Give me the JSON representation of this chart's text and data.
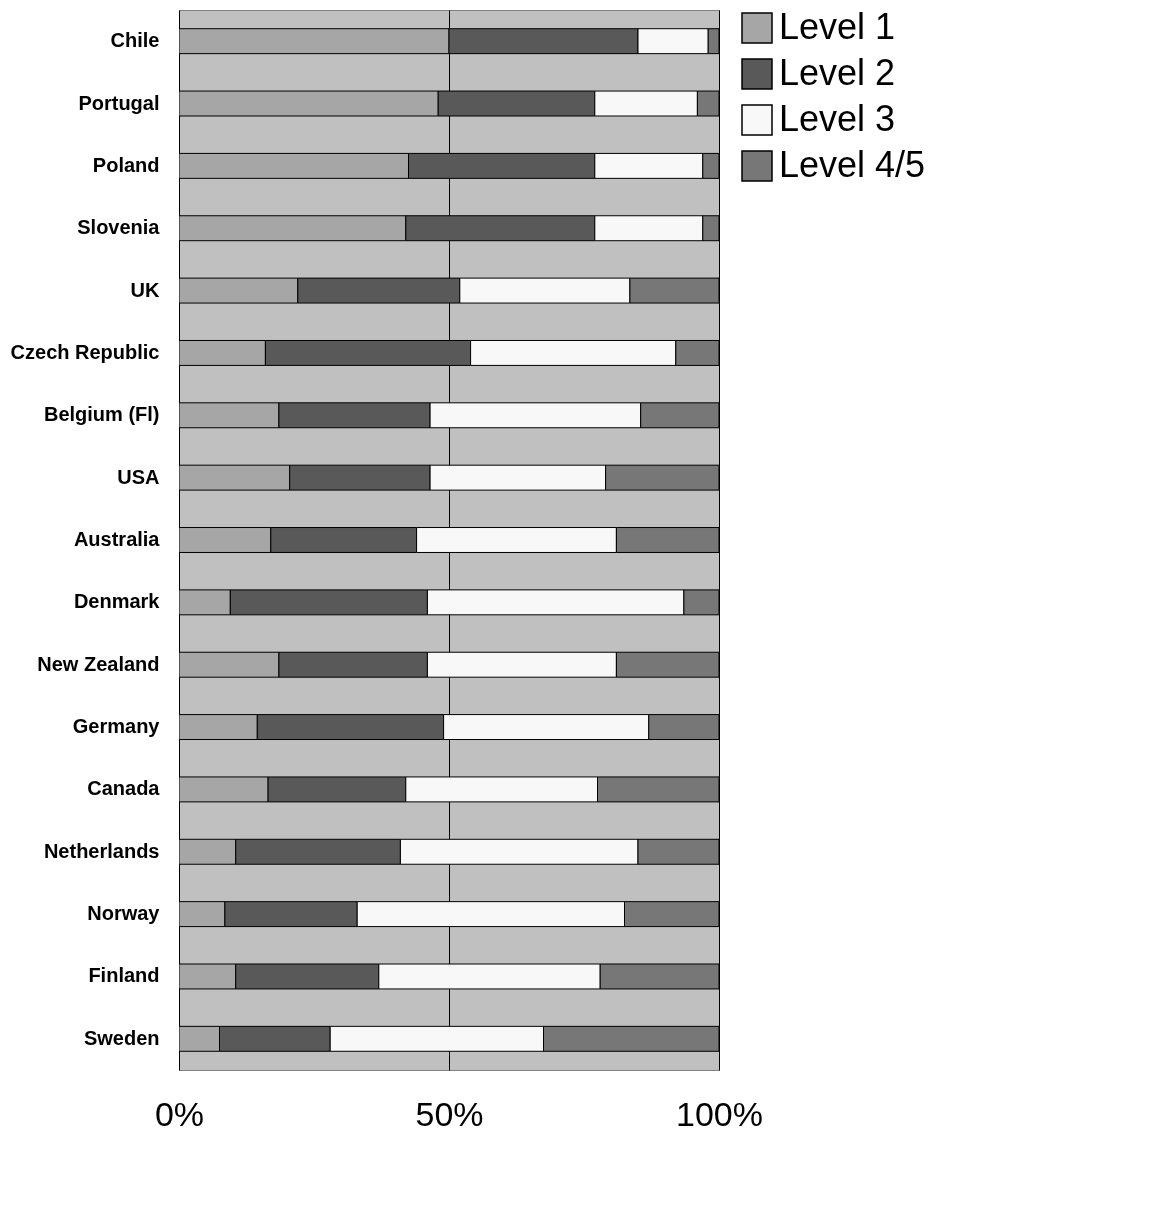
{
  "chart_data": {
    "type": "bar",
    "orientation": "horizontal",
    "stacked": true,
    "categories": [
      "Chile",
      "Portugal",
      "Poland",
      "Slovenia",
      "UK",
      "Czech Republic",
      "Belgium (Fl)",
      "USA",
      "Australia",
      "Denmark",
      "New Zealand",
      "Germany",
      "Canada",
      "Netherlands",
      "Norway",
      "Finland",
      "Sweden"
    ],
    "series": [
      {
        "name": "Level 1",
        "color": "#a6a6a6",
        "values": [
          50,
          48,
          42.5,
          42,
          22,
          16,
          18.5,
          20.5,
          17,
          9.5,
          18.5,
          14.5,
          16.5,
          10.5,
          8.5,
          10.5,
          7.5
        ]
      },
      {
        "name": "Level 2",
        "color": "#595959",
        "values": [
          35,
          29,
          34.5,
          35,
          30,
          38,
          28,
          26,
          27,
          36.5,
          27.5,
          34.5,
          25.5,
          30.5,
          24.5,
          26.5,
          20.5
        ]
      },
      {
        "name": "Level 3",
        "color": "#f8f8f8",
        "values": [
          13,
          19,
          20,
          20,
          31.5,
          38,
          39,
          32.5,
          37,
          47.5,
          35,
          38,
          35.5,
          44,
          49.5,
          41,
          39.5
        ]
      },
      {
        "name": "Level 4/5",
        "color": "#777777",
        "values": [
          2,
          4,
          3,
          3,
          16.5,
          8,
          14.5,
          21,
          19,
          6.5,
          19,
          13,
          22.5,
          15,
          17.5,
          22,
          32.5
        ]
      }
    ],
    "xlim": [
      0,
      100
    ],
    "xticks": [
      {
        "value": 0,
        "label": "0%"
      },
      {
        "value": 50,
        "label": "50%"
      },
      {
        "value": 100,
        "label": "100%"
      }
    ],
    "grid": "x",
    "legend": "right"
  }
}
